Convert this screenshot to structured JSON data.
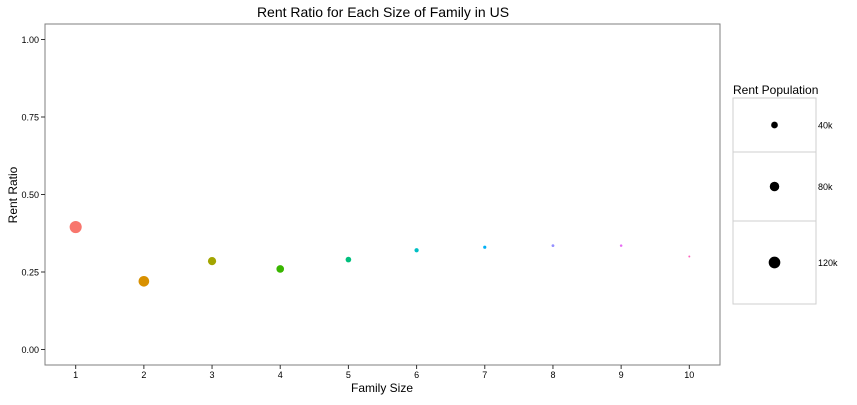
{
  "chart_data": {
    "type": "scatter",
    "title": "Rent Ratio for Each Size of Family in US",
    "xlabel": "Family Size",
    "ylabel": "Rent Ratio",
    "x_ticks": [
      1,
      2,
      3,
      4,
      5,
      6,
      7,
      8,
      9,
      10
    ],
    "y_ticks": [
      "0.00",
      "0.25",
      "0.50",
      "0.75",
      "1.00"
    ],
    "xlim": [
      0.55,
      10.45
    ],
    "ylim": [
      -0.05,
      1.05
    ],
    "grid": false,
    "points": [
      {
        "family_size": 1,
        "rent_ratio": 0.395,
        "rent_population": 130000,
        "color": "#F8766D"
      },
      {
        "family_size": 2,
        "rent_ratio": 0.22,
        "rent_population": 100000,
        "color": "#D89000"
      },
      {
        "family_size": 3,
        "rent_ratio": 0.285,
        "rent_population": 60000,
        "color": "#A3A500"
      },
      {
        "family_size": 4,
        "rent_ratio": 0.26,
        "rent_population": 52000,
        "color": "#39B600"
      },
      {
        "family_size": 5,
        "rent_ratio": 0.29,
        "rent_population": 28000,
        "color": "#00BF7D"
      },
      {
        "family_size": 6,
        "rent_ratio": 0.32,
        "rent_population": 16000,
        "color": "#00BFC4"
      },
      {
        "family_size": 7,
        "rent_ratio": 0.33,
        "rent_population": 9000,
        "color": "#00B0F6"
      },
      {
        "family_size": 8,
        "rent_ratio": 0.335,
        "rent_population": 7000,
        "color": "#9590FF"
      },
      {
        "family_size": 9,
        "rent_ratio": 0.335,
        "rent_population": 5500,
        "color": "#E76BF3"
      },
      {
        "family_size": 10,
        "rent_ratio": 0.3,
        "rent_population": 3500,
        "color": "#FF62BC"
      }
    ],
    "legend": {
      "title": "Rent Population",
      "position": "right",
      "entries": [
        {
          "label": "40k",
          "value": 40000
        },
        {
          "label": "80k",
          "value": 80000
        },
        {
          "label": "120k",
          "value": 120000
        }
      ]
    }
  }
}
